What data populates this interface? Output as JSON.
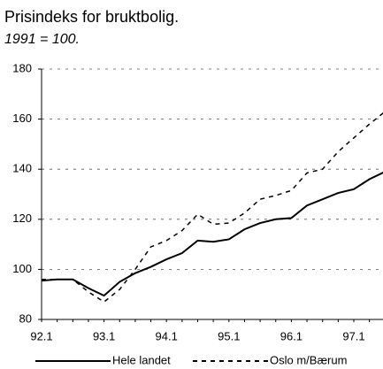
{
  "chart_data": {
    "type": "line",
    "title": "Prisindeks for bruktbolig.",
    "subtitle": "1991 = 100.",
    "categories": [
      "92.1",
      null,
      null,
      null,
      "93.1",
      null,
      null,
      null,
      "94.1",
      null,
      null,
      null,
      "95.1",
      null,
      null,
      null,
      "96.1",
      null,
      null,
      null,
      "97.1",
      null,
      null
    ],
    "series": [
      {
        "name": "Hele landet",
        "color": "#000000",
        "style": "solid",
        "values": [
          95.5,
          96,
          96,
          92.5,
          89.5,
          95,
          98.5,
          101,
          104,
          106.5,
          111.5,
          111,
          112,
          116,
          118.5,
          120,
          120.5,
          125.5,
          128,
          130.5,
          132,
          136,
          139
        ]
      },
      {
        "name": "Oslo m/Bærum",
        "color": "#000000",
        "style": "dashed",
        "values": [
          96,
          96,
          96,
          91,
          87,
          92,
          100,
          109,
          111.5,
          115.5,
          122,
          118,
          118.5,
          122.5,
          128,
          129.5,
          131.5,
          138.5,
          140,
          147,
          152.5,
          158,
          163
        ]
      }
    ],
    "ylim": [
      80,
      180
    ],
    "yticks": [
      80,
      100,
      120,
      140,
      160,
      180
    ],
    "grid": true
  }
}
